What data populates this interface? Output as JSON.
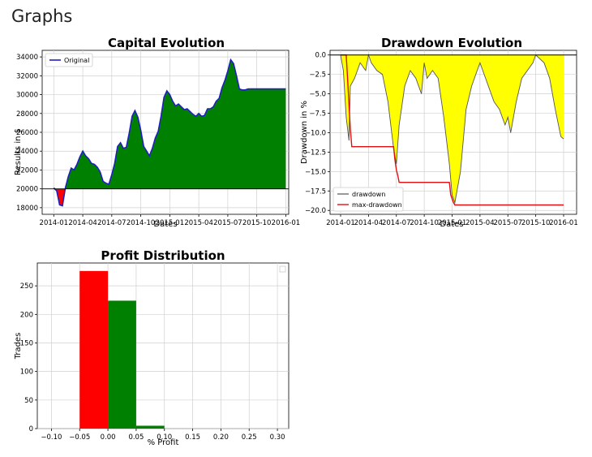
{
  "page": {
    "title": "Graphs"
  },
  "colors": {
    "capital_line": "#1f1fbf",
    "capital_fill_pos": "#008000",
    "capital_fill_neg": "#ff0000",
    "drawdown_fill": "#ffff00",
    "drawdown_line": "#555555",
    "maxdd_line": "#e01010",
    "hist_neg": "#ff0000",
    "hist_pos": "#008000"
  },
  "chart_data": [
    {
      "type": "area",
      "title": "Capital Evolution",
      "xlabel": "Dates",
      "ylabel": "Results in $",
      "xticks": [
        "2014-01",
        "2014-04",
        "2014-07",
        "2014-10",
        "2015-01",
        "2015-04",
        "2015-07",
        "2015-10",
        "2016-01"
      ],
      "yticks": [
        18000,
        20000,
        22000,
        24000,
        26000,
        28000,
        30000,
        32000,
        34000
      ],
      "xlim": [
        -0.4,
        8.1
      ],
      "ylim": [
        17300,
        34700
      ],
      "baseline": 20000,
      "grid": true,
      "legend": "top-left",
      "series": [
        {
          "name": "Original",
          "x": [
            0,
            0.1,
            0.2,
            0.3,
            0.4,
            0.5,
            0.6,
            0.7,
            0.8,
            0.9,
            1,
            1.1,
            1.2,
            1.3,
            1.4,
            1.5,
            1.6,
            1.7,
            1.8,
            1.9,
            2,
            2.1,
            2.2,
            2.3,
            2.4,
            2.5,
            2.6,
            2.7,
            2.8,
            2.9,
            3,
            3.1,
            3.2,
            3.3,
            3.4,
            3.5,
            3.6,
            3.7,
            3.8,
            3.9,
            4,
            4.1,
            4.2,
            4.3,
            4.4,
            4.5,
            4.6,
            4.7,
            4.8,
            4.9,
            5,
            5.1,
            5.2,
            5.3,
            5.4,
            5.5,
            5.6,
            5.7,
            5.8,
            5.9,
            6,
            6.1,
            6.2,
            6.3,
            6.4,
            6.5,
            6.6,
            6.7,
            6.8,
            6.9,
            7,
            7.1,
            7.2,
            7.3,
            7.4,
            7.5,
            7.6,
            7.7,
            7.8,
            7.9,
            8
          ],
          "values": [
            20100,
            19800,
            18300,
            18200,
            20100,
            21300,
            22200,
            22000,
            22600,
            23400,
            24000,
            23500,
            23200,
            22700,
            22600,
            22300,
            21800,
            20800,
            20600,
            20500,
            21500,
            22700,
            24500,
            24900,
            24300,
            24400,
            25900,
            27700,
            28300,
            27600,
            26200,
            24500,
            24000,
            23500,
            24300,
            25400,
            26100,
            27700,
            29700,
            30400,
            30000,
            29300,
            28800,
            29000,
            28700,
            28400,
            28500,
            28200,
            27900,
            27700,
            28000,
            27700,
            27800,
            28500,
            28500,
            28700,
            29300,
            29600,
            30700,
            31500,
            32500,
            33700,
            33300,
            32000,
            30600,
            30500,
            30500,
            30600,
            30600,
            30600,
            30600,
            30600,
            30600,
            30600,
            30600,
            30600,
            30600,
            30600,
            30600,
            30600,
            30600
          ]
        }
      ]
    },
    {
      "type": "area",
      "title": "Drawdown Evolution",
      "xlabel": "Dates",
      "ylabel": "Drawdown in %",
      "xticks": [
        "2014-01",
        "2014-04",
        "2014-07",
        "2014-10",
        "2015-01",
        "2015-04",
        "2015-07",
        "2015-10",
        "2016-01"
      ],
      "yticks": [
        0.0,
        -2.5,
        -5.0,
        -7.5,
        -10.0,
        -12.5,
        -15.0,
        -17.5,
        -20.0
      ],
      "ylim": [
        -20.5,
        0.6
      ],
      "grid": true,
      "legend": "bottom-left",
      "series": [
        {
          "name": "drawdown",
          "x": [
            0,
            0.1,
            0.2,
            0.3,
            0.35,
            0.5,
            0.7,
            0.9,
            1.0,
            1.1,
            1.3,
            1.5,
            1.7,
            1.9,
            2.0,
            2.1,
            2.3,
            2.5,
            2.7,
            2.9,
            3.0,
            3.1,
            3.3,
            3.5,
            3.7,
            3.9,
            4.0,
            4.1,
            4.3,
            4.5,
            4.7,
            4.9,
            5.0,
            5.1,
            5.3,
            5.5,
            5.7,
            5.9,
            6.0,
            6.1,
            6.3,
            6.5,
            6.7,
            6.9,
            7.0,
            7.3,
            7.5,
            7.7,
            7.9,
            8.0
          ],
          "values": [
            0,
            -2,
            -8,
            -11,
            -4,
            -3,
            -1,
            -2,
            0,
            -1,
            -2,
            -2.5,
            -6,
            -12,
            -14,
            -9,
            -4,
            -2,
            -3,
            -5,
            -1,
            -3,
            -2,
            -3,
            -8,
            -14,
            -18,
            -19,
            -15,
            -7,
            -4,
            -2,
            -1,
            -2,
            -4,
            -6,
            -7,
            -9,
            -8,
            -10,
            -6,
            -3,
            -2,
            -1,
            0,
            -1,
            -3,
            -7,
            -10.5,
            -10.8
          ]
        },
        {
          "name": "max-drawdown",
          "x": [
            0,
            0.2,
            0.25,
            0.35,
            0.4,
            1.9,
            1.95,
            2.0,
            2.05,
            2.1,
            2.15,
            3.9,
            3.95,
            4.0,
            4.05,
            4.1,
            4.15,
            8.0
          ],
          "values": [
            0,
            0,
            -3,
            -9.5,
            -11.8,
            -11.8,
            -13.5,
            -14.8,
            -15.5,
            -16.4,
            -16.4,
            -16.4,
            -18,
            -18.5,
            -19,
            -19.3,
            -19.3,
            -19.3
          ]
        }
      ]
    },
    {
      "type": "bar",
      "title": "Profit Distribution",
      "xlabel": "% Profit",
      "ylabel": "Trades",
      "xticks": [
        -0.1,
        -0.05,
        0.0,
        0.05,
        0.1,
        0.15,
        0.2,
        0.25,
        0.3
      ],
      "yticks": [
        0,
        50,
        100,
        150,
        200,
        250
      ],
      "xlim": [
        -0.125,
        0.32
      ],
      "ylim": [
        0,
        290
      ],
      "grid": true,
      "bins": [
        {
          "from": -0.05,
          "to": 0.0,
          "count": 276
        },
        {
          "from": 0.0,
          "to": 0.05,
          "count": 224
        },
        {
          "from": 0.05,
          "to": 0.1,
          "count": 5
        }
      ]
    }
  ]
}
